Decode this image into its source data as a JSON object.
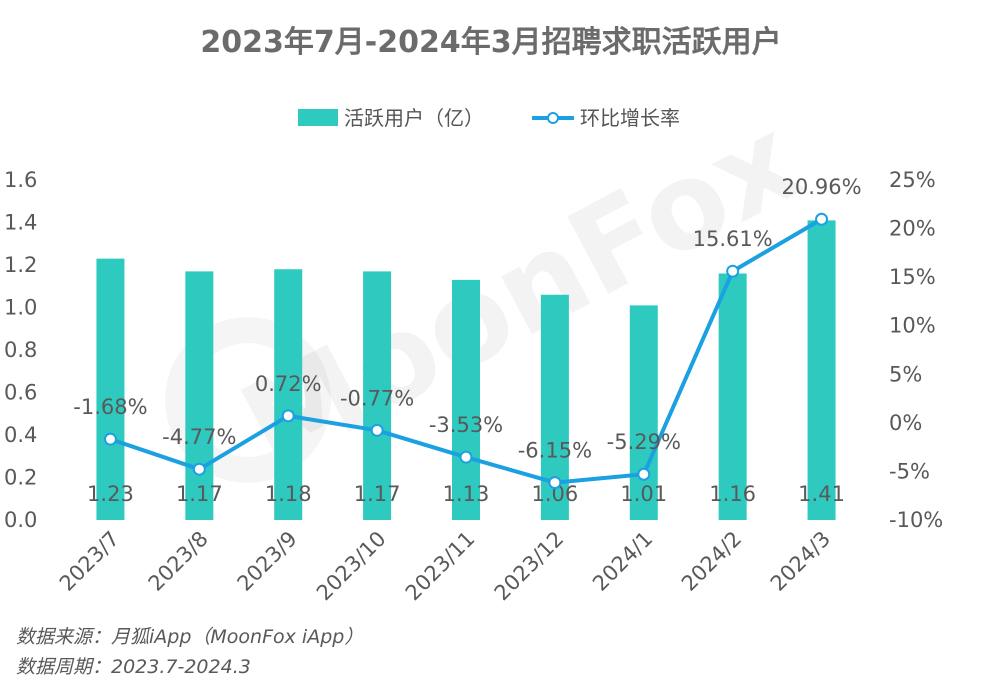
{
  "chart_data": {
    "type": "bar",
    "title": "2023年7月-2024年3月招聘求职活跃用户",
    "categories": [
      "2023/7",
      "2023/8",
      "2023/9",
      "2023/10",
      "2023/11",
      "2023/12",
      "2024/1",
      "2024/2",
      "2024/3"
    ],
    "series": [
      {
        "name": "活跃用户（亿）",
        "type": "bar",
        "axis": "left",
        "color": "#2ecac0",
        "values": [
          1.23,
          1.17,
          1.18,
          1.17,
          1.13,
          1.06,
          1.01,
          1.16,
          1.41
        ],
        "value_labels": [
          "1.23",
          "1.17",
          "1.18",
          "1.17",
          "1.13",
          "1.06",
          "1.01",
          "1.16",
          "1.41"
        ]
      },
      {
        "name": "环比增长率",
        "type": "line",
        "axis": "right",
        "color": "#1ba0e2",
        "values": [
          -1.68,
          -4.77,
          0.72,
          -0.77,
          -3.53,
          -6.15,
          -5.29,
          15.61,
          20.96
        ],
        "value_labels": [
          "-1.68%",
          "-4.77%",
          "0.72%",
          "-0.77%",
          "-3.53%",
          "-6.15%",
          "-5.29%",
          "15.61%",
          "20.96%"
        ]
      }
    ],
    "y_left": {
      "ylim": [
        0,
        1.6
      ],
      "ticks": [
        "0.0",
        "0.2",
        "0.4",
        "0.6",
        "0.8",
        "1.0",
        "1.2",
        "1.4",
        "1.6"
      ]
    },
    "y_right": {
      "ylim": [
        -10,
        25
      ],
      "ticks": [
        "-10%",
        "-5%",
        "0%",
        "5%",
        "10%",
        "15%",
        "20%",
        "25%"
      ]
    },
    "legend_placement": "top-center",
    "grid": false
  },
  "watermark": "MoonFox",
  "footer": {
    "source": "数据来源：月狐iApp（MoonFox iApp）",
    "period": "数据周期：2023.7-2024.3"
  }
}
